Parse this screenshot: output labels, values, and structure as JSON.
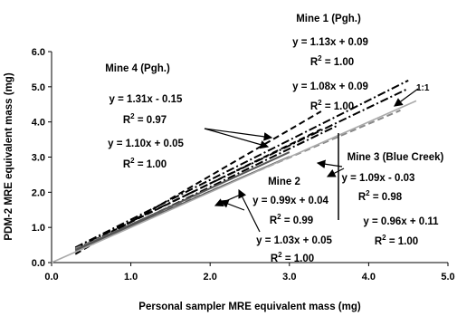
{
  "chart_data": {
    "type": "line",
    "xlabel": "Personal sampler MRE equivalent mass (mg)",
    "ylabel": "PDM-2 MRE equivalent mass (mg)",
    "xlim": [
      0,
      5
    ],
    "ylim": [
      0,
      6
    ],
    "x_ticks": [
      "0.0",
      "1.0",
      "2.0",
      "3.0",
      "4.0",
      "5.0"
    ],
    "y_ticks": [
      "0.0",
      "1.0",
      "2.0",
      "3.0",
      "4.0",
      "5.0",
      "6.0"
    ],
    "grid": false,
    "legend": "none",
    "reference_label": "1:1",
    "series": [
      {
        "slope": 1.13,
        "intercept": 0.09,
        "x": [
          0.3,
          4.5
        ],
        "y": [
          0.43,
          5.18
        ],
        "dash": "dashdot",
        "color": "#000000"
      },
      {
        "slope": 1.08,
        "intercept": 0.09,
        "x": [
          0.3,
          4.5
        ],
        "y": [
          0.41,
          4.95
        ],
        "dash": "dashdot",
        "color": "#000000"
      },
      {
        "slope": 1.31,
        "intercept": -0.15,
        "x": [
          0.3,
          3.4
        ],
        "y": [
          0.24,
          4.3
        ],
        "dash": "dashed",
        "color": "#000000"
      },
      {
        "slope": 1.1,
        "intercept": 0.05,
        "x": [
          0.3,
          3.4
        ],
        "y": [
          0.38,
          3.79
        ],
        "dash": "dashed",
        "color": "#000000"
      },
      {
        "slope": 1.09,
        "intercept": -0.03,
        "x": [
          0.3,
          3.6
        ],
        "y": [
          0.3,
          3.89
        ],
        "dash": "dashdot",
        "color": "#000000"
      },
      {
        "slope": 0.96,
        "intercept": 0.11,
        "x": [
          0.3,
          4.4
        ],
        "y": [
          0.4,
          4.33
        ],
        "dash": "dashed",
        "color": "#888888"
      },
      {
        "slope": 0.99,
        "intercept": 0.04,
        "x": [
          0.3,
          3.0
        ],
        "y": [
          0.34,
          3.01
        ],
        "dash": "solid",
        "color": "#555555"
      },
      {
        "slope": 1.03,
        "intercept": 0.05,
        "x": [
          0.3,
          3.0
        ],
        "y": [
          0.36,
          3.14
        ],
        "dash": "solid",
        "color": "#555555"
      },
      {
        "slope": 1.0,
        "intercept": 0.0,
        "x": [
          0.0,
          4.6
        ],
        "y": [
          0.0,
          4.6
        ],
        "dash": "solid",
        "color": "#aaaaaa"
      }
    ],
    "annotations": {
      "mine1": {
        "label": "Mine 1 (Pgh.)",
        "eq1": "y = 1.13x + 0.09",
        "r1": "1.00",
        "eq2": "y = 1.08x + 0.09",
        "r2": "1.00"
      },
      "mine4": {
        "label": "Mine 4 (Pgh.)",
        "eq1": "y = 1.31x - 0.15",
        "r1": "0.97",
        "eq2": "y = 1.10x + 0.05",
        "r2": "1.00"
      },
      "mine3": {
        "label": "Mine 3 (Blue Creek)",
        "eq1": "y = 1.09x - 0.03",
        "r1": "0.98",
        "eq2": "y = 0.96x + 0.11",
        "r2": "1.00"
      },
      "mine2": {
        "label": "Mine 2",
        "eq1": "y = 0.99x + 0.04",
        "r1": "0.99",
        "eq2": "y = 1.03x + 0.05",
        "r2": "1.00"
      },
      "r2_prefix": "R",
      "r2_sup": "2",
      "r2_eq": " = "
    }
  }
}
